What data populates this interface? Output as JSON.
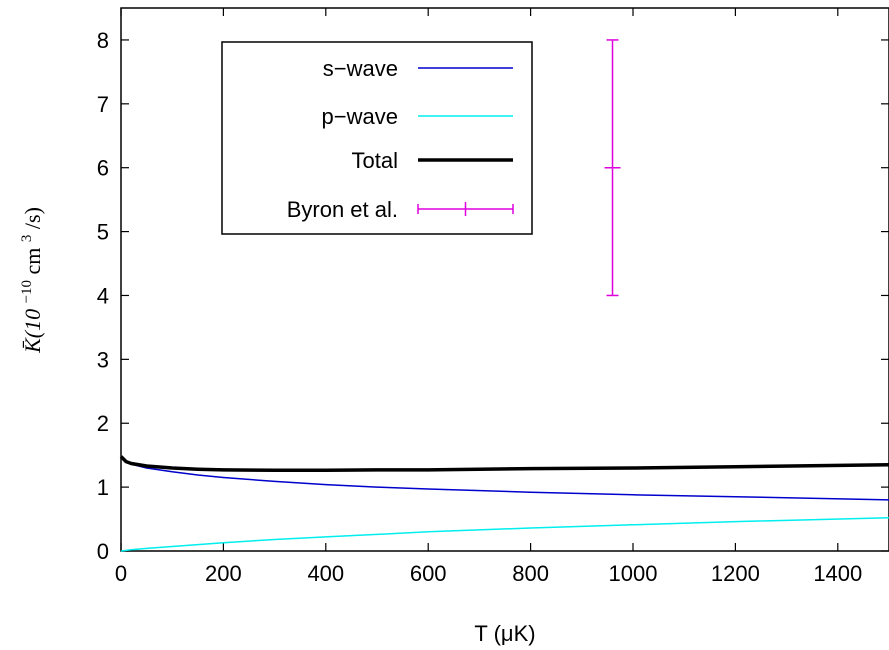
{
  "chart_data": {
    "type": "line",
    "xlabel": "T (μK)",
    "ylabel": {
      "main": "K̄(10",
      "exp1": "−10",
      "mid": " cm",
      "exp2": "3",
      "end": "/s)"
    },
    "xlim": [
      0,
      1500
    ],
    "ylim": [
      0,
      8.5
    ],
    "x_ticks": [
      0,
      200,
      400,
      600,
      800,
      1000,
      1200,
      1400
    ],
    "y_ticks": [
      0,
      1,
      2,
      3,
      4,
      5,
      6,
      7,
      8
    ],
    "grid": false,
    "legend_position": "top-left",
    "series": [
      {
        "name": "s−wave",
        "color": "#0000cc",
        "x": [
          0,
          10,
          20,
          50,
          100,
          150,
          200,
          300,
          400,
          500,
          600,
          800,
          1000,
          1200,
          1500
        ],
        "y": [
          1.48,
          1.4,
          1.36,
          1.3,
          1.24,
          1.19,
          1.15,
          1.09,
          1.04,
          1.0,
          0.97,
          0.92,
          0.88,
          0.85,
          0.8
        ]
      },
      {
        "name": "p−wave",
        "color": "#00eeee",
        "x": [
          0,
          10,
          20,
          50,
          100,
          150,
          200,
          300,
          400,
          500,
          600,
          800,
          1000,
          1200,
          1500
        ],
        "y": [
          0.0,
          0.01,
          0.02,
          0.04,
          0.07,
          0.1,
          0.13,
          0.18,
          0.22,
          0.26,
          0.3,
          0.36,
          0.41,
          0.46,
          0.52
        ]
      },
      {
        "name": "Total",
        "color": "#000000",
        "x": [
          0,
          10,
          20,
          50,
          100,
          150,
          200,
          300,
          400,
          500,
          600,
          800,
          1000,
          1200,
          1500
        ],
        "y": [
          1.48,
          1.4,
          1.37,
          1.33,
          1.3,
          1.28,
          1.27,
          1.265,
          1.265,
          1.27,
          1.27,
          1.29,
          1.3,
          1.32,
          1.35
        ]
      }
    ],
    "errorbar_series": {
      "name": "Byron et al.",
      "color": "#dd00dd",
      "x": 960,
      "y": 6.0,
      "ymin": 4.0,
      "ymax": 8.0
    }
  }
}
